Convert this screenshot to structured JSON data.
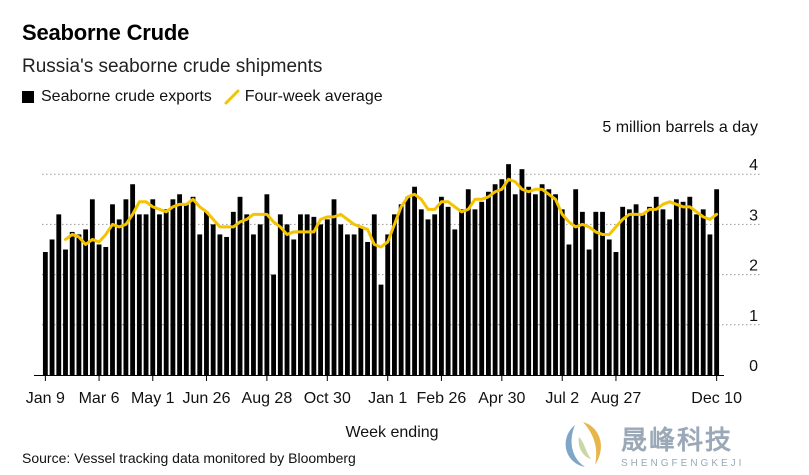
{
  "title": "Seaborne Crude",
  "subtitle": "Russia's seaborne crude shipments",
  "legend": {
    "bars": "Seaborne crude exports",
    "line": "Four-week average"
  },
  "source": "Source: Vessel tracking data monitored by Bloomberg",
  "watermark": {
    "cn": "晟峰科技",
    "en": "SHENGFENGKEJI"
  },
  "colors": {
    "bar": "#000000",
    "line": "#f5c400",
    "axis": "#000000",
    "grid": "#999999"
  },
  "chart_data": {
    "type": "bar",
    "title": "Seaborne Crude",
    "subtitle": "Russia's seaborne crude shipments",
    "unit_label": "5 million barrels a day",
    "xlabel": "Week ending",
    "ylabel": "",
    "ylim": [
      0,
      5
    ],
    "yticks": [
      0,
      1,
      2,
      3,
      4
    ],
    "x_tick_labels": [
      {
        "label": "Jan 9",
        "index": 0
      },
      {
        "label": "Mar 6",
        "index": 8
      },
      {
        "label": "May 1",
        "index": 16
      },
      {
        "label": "Jun 26",
        "index": 24
      },
      {
        "label": "Aug 28",
        "index": 33
      },
      {
        "label": "Oct 30",
        "index": 42
      },
      {
        "label": "Jan 1",
        "index": 51
      },
      {
        "label": "Feb 26",
        "index": 59
      },
      {
        "label": "Apr 30",
        "index": 68
      },
      {
        "label": "Jul 2",
        "index": 77
      },
      {
        "label": "Aug 27",
        "index": 85
      },
      {
        "label": "Dec 10",
        "index": 100
      }
    ],
    "series": [
      {
        "name": "Seaborne crude exports",
        "type": "bar",
        "values": [
          2.45,
          2.7,
          3.2,
          2.5,
          2.85,
          2.8,
          2.9,
          3.5,
          2.6,
          2.55,
          3.4,
          3.1,
          3.5,
          3.8,
          3.2,
          3.2,
          3.5,
          3.2,
          3.3,
          3.5,
          3.6,
          3.4,
          3.55,
          2.8,
          3.25,
          3.0,
          2.8,
          2.75,
          3.25,
          3.55,
          3.2,
          2.8,
          3.0,
          3.6,
          2.0,
          3.2,
          3.0,
          2.7,
          3.2,
          3.2,
          3.15,
          3.0,
          3.1,
          3.5,
          3.0,
          2.8,
          2.8,
          2.95,
          2.65,
          3.2,
          1.8,
          2.8,
          3.2,
          3.4,
          3.55,
          3.75,
          3.3,
          3.1,
          3.2,
          3.55,
          3.35,
          2.9,
          3.3,
          3.7,
          3.3,
          3.45,
          3.65,
          3.8,
          3.9,
          4.2,
          3.6,
          4.1,
          3.75,
          3.6,
          3.8,
          3.7,
          3.6,
          3.3,
          2.6,
          3.7,
          3.25,
          2.5,
          3.25,
          3.25,
          2.7,
          2.45,
          3.35,
          3.3,
          3.4,
          3.2,
          3.35,
          3.55,
          3.3,
          3.1,
          3.5,
          3.45,
          3.55,
          3.2,
          3.3,
          2.8,
          3.7
        ]
      },
      {
        "name": "Four-week average",
        "type": "line",
        "values": [
          null,
          null,
          null,
          2.7,
          2.8,
          2.75,
          2.6,
          2.7,
          2.65,
          2.8,
          3.0,
          2.95,
          3.0,
          3.2,
          3.45,
          3.45,
          3.35,
          3.3,
          3.25,
          3.35,
          3.4,
          3.4,
          3.5,
          3.35,
          3.25,
          3.1,
          2.95,
          2.95,
          2.95,
          3.05,
          3.1,
          3.2,
          3.2,
          3.2,
          3.05,
          2.95,
          2.8,
          2.85,
          2.85,
          2.85,
          2.85,
          3.1,
          3.15,
          3.15,
          3.2,
          3.1,
          3.0,
          2.95,
          2.9,
          2.6,
          2.55,
          2.65,
          3.0,
          3.35,
          3.55,
          3.6,
          3.5,
          3.3,
          3.3,
          3.45,
          3.45,
          3.35,
          3.25,
          3.3,
          3.5,
          3.5,
          3.55,
          3.65,
          3.7,
          3.9,
          3.85,
          3.7,
          3.65,
          3.7,
          3.7,
          3.6,
          3.5,
          3.2,
          3.05,
          2.95,
          3.0,
          2.95,
          2.85,
          2.8,
          2.8,
          2.95,
          3.1,
          3.2,
          3.2,
          3.2,
          3.3,
          3.3,
          3.4,
          3.45,
          3.4,
          3.35,
          3.35,
          3.25,
          3.15,
          3.1,
          3.2
        ]
      }
    ],
    "grid": true,
    "legend_position": "top-left"
  }
}
